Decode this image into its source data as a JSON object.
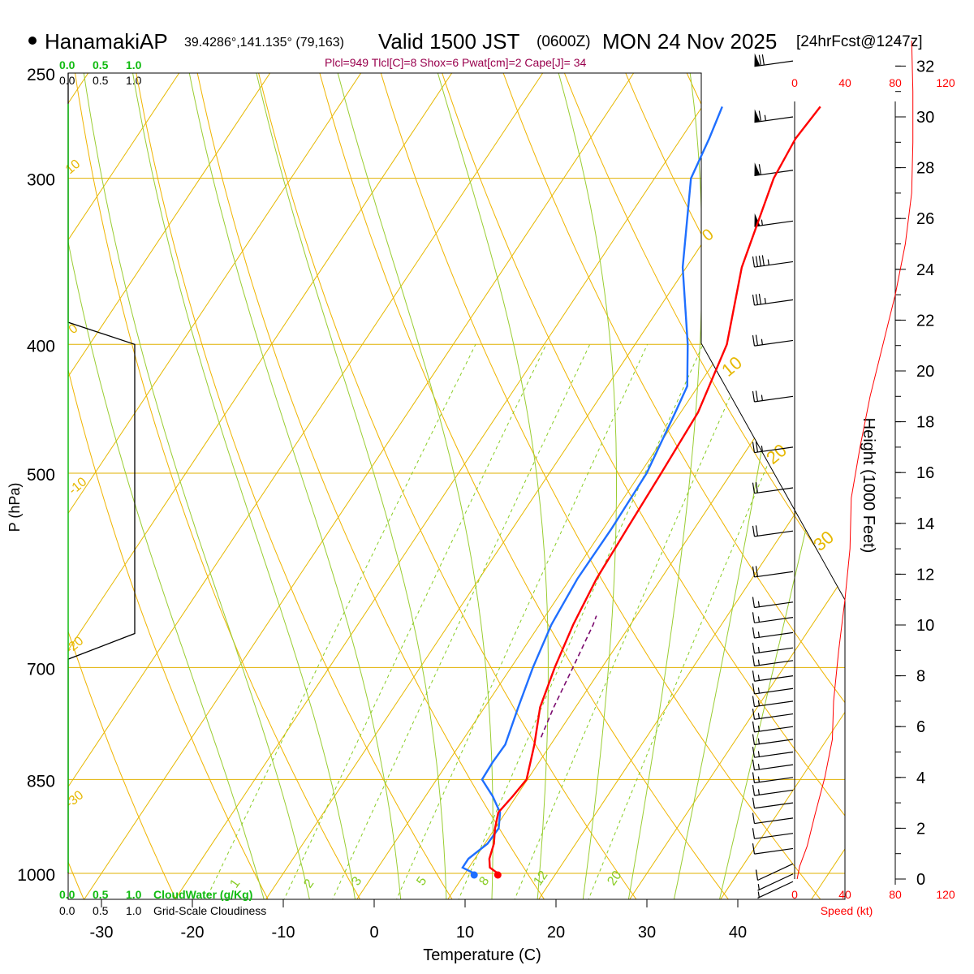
{
  "colors": {
    "iso": "#e6b800",
    "dryAdiabat": "#f0b400",
    "moistAdiabat": "#9acd32",
    "mixing": "#88cc22",
    "temp": "#ff0000",
    "dew": "#1f6fff",
    "parcel": "#7a0a6e",
    "cloud": "#11bb11",
    "stats": "#99004d",
    "wind": "#ff0000"
  },
  "header": {
    "station": "HanamakiAP",
    "coords": "39.4286°,141.135° (79,163)",
    "valid_label": "Valid 1500 JST",
    "zulu": "(0600Z)",
    "date": "MON 24 Nov 2025",
    "forecast": "[24hrFcst@1247z]",
    "stats": "Plcl=949 Tlcl[C]=8 Shox=6 Pwat[cm]=2 Cape[J]= 34"
  },
  "scales": {
    "cloud_water_ticks": [
      "0.0",
      "0.5",
      "1.0"
    ],
    "cloudiness_ticks": [
      "0.0",
      "0.5",
      "1.0"
    ],
    "cloud_water_label": "CloudWater (g/Kg)",
    "cloudiness_label": "Grid-Scale Cloudiness",
    "speed_ticks": [
      "0",
      "40",
      "80",
      "120"
    ],
    "speed_label": "Speed (kt)"
  },
  "chart_data": {
    "type": "skew-t",
    "title": "HanamakiAP Valid 1500 JST (0600Z) MON 24 Nov 2025",
    "xlabel": "Temperature (C)",
    "ylabel": "P (hPa)",
    "y2label": "Height (1000 Feet)",
    "x_ticks": [
      "-30",
      "-20",
      "-10",
      "0",
      "10",
      "20",
      "30",
      "40"
    ],
    "pressure_ticks": [
      {
        "p": 250,
        "label": "250"
      },
      {
        "p": 300,
        "label": "300"
      },
      {
        "p": 400,
        "label": "400"
      },
      {
        "p": 500,
        "label": "500"
      },
      {
        "p": 700,
        "label": "700"
      },
      {
        "p": 850,
        "label": "850"
      },
      {
        "p": 1000,
        "label": "1000"
      }
    ],
    "height_ticks": [
      {
        "h": 0,
        "label": "0"
      },
      {
        "h": 2,
        "label": "2"
      },
      {
        "h": 4,
        "label": "4"
      },
      {
        "h": 6,
        "label": "6"
      },
      {
        "h": 8,
        "label": "8"
      },
      {
        "h": 10,
        "label": "10"
      },
      {
        "h": 12,
        "label": "12"
      },
      {
        "h": 14,
        "label": "14"
      },
      {
        "h": 16,
        "label": "16"
      },
      {
        "h": 18,
        "label": "18"
      },
      {
        "h": 20,
        "label": "20"
      },
      {
        "h": 22,
        "label": "22"
      },
      {
        "h": 24,
        "label": "24"
      },
      {
        "h": 26,
        "label": "26"
      },
      {
        "h": 28,
        "label": "28"
      },
      {
        "h": 30,
        "label": "30"
      },
      {
        "h": 32,
        "label": "32"
      }
    ],
    "isotherm_labels": [
      {
        "t": 0,
        "label": "0"
      },
      {
        "t": 10,
        "label": "10"
      },
      {
        "t": 20,
        "label": "20"
      },
      {
        "t": 30,
        "label": "30"
      },
      {
        "t": 10,
        "label": "10",
        "left": true
      },
      {
        "t": 0,
        "label": "0",
        "left": true
      },
      {
        "t": -10,
        "label": "-10",
        "left": true
      },
      {
        "t": -20,
        "label": "-20",
        "left": true
      },
      {
        "t": -30,
        "label": "-30",
        "left": true
      }
    ],
    "mixing_ratio_labels": [
      "1",
      "2",
      "3",
      "5",
      "8",
      "12",
      "20"
    ],
    "mixing_ratios": [
      1,
      2,
      3,
      5,
      8,
      12,
      20
    ],
    "temperature": [
      {
        "p": 1000,
        "t": 13.6
      },
      {
        "p": 990,
        "t": 12.3
      },
      {
        "p": 975,
        "t": 11.6
      },
      {
        "p": 950,
        "t": 11.0
      },
      {
        "p": 925,
        "t": 10.0
      },
      {
        "p": 900,
        "t": 9.2
      },
      {
        "p": 875,
        "t": 9.6
      },
      {
        "p": 850,
        "t": 9.9
      },
      {
        "p": 800,
        "t": 8.2
      },
      {
        "p": 750,
        "t": 6.1
      },
      {
        "p": 700,
        "t": 4.8
      },
      {
        "p": 650,
        "t": 3.7
      },
      {
        "p": 600,
        "t": 2.9
      },
      {
        "p": 550,
        "t": 2.6
      },
      {
        "p": 500,
        "t": 2.3
      },
      {
        "p": 450,
        "t": 1.9
      },
      {
        "p": 400,
        "t": 0.1
      },
      {
        "p": 350,
        "t": -3.9
      },
      {
        "p": 300,
        "t": -6.9
      },
      {
        "p": 280,
        "t": -7.4
      },
      {
        "p": 265,
        "t": -7.0
      }
    ],
    "dewpoint": [
      {
        "p": 1000,
        "t": 11.0
      },
      {
        "p": 990,
        "t": 9.3
      },
      {
        "p": 975,
        "t": 9.3
      },
      {
        "p": 950,
        "t": 10.3
      },
      {
        "p": 925,
        "t": 10.4
      },
      {
        "p": 900,
        "t": 9.4
      },
      {
        "p": 875,
        "t": 7.4
      },
      {
        "p": 850,
        "t": 5.0
      },
      {
        "p": 825,
        "t": 4.9
      },
      {
        "p": 800,
        "t": 5.0
      },
      {
        "p": 750,
        "t": 3.7
      },
      {
        "p": 700,
        "t": 2.4
      },
      {
        "p": 650,
        "t": 1.3
      },
      {
        "p": 600,
        "t": 0.8
      },
      {
        "p": 550,
        "t": 0.9
      },
      {
        "p": 500,
        "t": 0.7
      },
      {
        "p": 450,
        "t": -0.6
      },
      {
        "p": 430,
        "t": -1.2
      },
      {
        "p": 400,
        "t": -4.2
      },
      {
        "p": 350,
        "t": -10.4
      },
      {
        "p": 300,
        "t": -16.0
      },
      {
        "p": 280,
        "t": -16.9
      },
      {
        "p": 265,
        "t": -17.8
      }
    ],
    "parcel": [
      {
        "p": 790,
        "t": 8.4
      },
      {
        "p": 750,
        "t": 7.6
      },
      {
        "p": 700,
        "t": 6.8
      },
      {
        "p": 650,
        "t": 5.9
      },
      {
        "p": 640,
        "t": 5.6
      }
    ],
    "surface_temp": 13.6,
    "surface_dew": 11.0,
    "cloud_profile": [
      {
        "p": 250,
        "v": 0
      },
      {
        "p": 385,
        "v": 0
      },
      {
        "p": 400,
        "v": 1.0
      },
      {
        "p": 660,
        "v": 1.0
      },
      {
        "p": 690,
        "v": 0
      },
      {
        "p": 1000,
        "v": 0
      }
    ],
    "wind_speed_profile": [
      {
        "h": 0,
        "s": 2
      },
      {
        "h": 0.5,
        "s": 4
      },
      {
        "h": 1.3,
        "s": 10
      },
      {
        "h": 2.5,
        "s": 16
      },
      {
        "h": 4,
        "s": 24
      },
      {
        "h": 5.5,
        "s": 30
      },
      {
        "h": 7,
        "s": 31
      },
      {
        "h": 9,
        "s": 35
      },
      {
        "h": 11,
        "s": 40
      },
      {
        "h": 13,
        "s": 44
      },
      {
        "h": 15,
        "s": 45
      },
      {
        "h": 17,
        "s": 52
      },
      {
        "h": 19,
        "s": 60
      },
      {
        "h": 21,
        "s": 70
      },
      {
        "h": 23,
        "s": 80
      },
      {
        "h": 25,
        "s": 88
      },
      {
        "h": 27,
        "s": 93
      },
      {
        "h": 29,
        "s": 94
      },
      {
        "h": 31,
        "s": 94
      },
      {
        "h": 33,
        "s": 93
      }
    ],
    "wind_barbs": [
      {
        "h": 32.2,
        "kt": 70
      },
      {
        "h": 30.0,
        "kt": 65
      },
      {
        "h": 27.9,
        "kt": 60
      },
      {
        "h": 25.9,
        "kt": 55
      },
      {
        "h": 24.3,
        "kt": 45
      },
      {
        "h": 22.8,
        "kt": 35
      },
      {
        "h": 21.2,
        "kt": 25
      },
      {
        "h": 19.0,
        "kt": 25
      },
      {
        "h": 17.0,
        "kt": 25
      },
      {
        "h": 15.4,
        "kt": 20
      },
      {
        "h": 13.7,
        "kt": 20
      },
      {
        "h": 12.1,
        "kt": 20
      },
      {
        "h": 10.9,
        "kt": 15
      },
      {
        "h": 10.3,
        "kt": 15
      },
      {
        "h": 9.7,
        "kt": 15
      },
      {
        "h": 9.1,
        "kt": 15
      },
      {
        "h": 8.6,
        "kt": 15
      },
      {
        "h": 8.0,
        "kt": 15
      },
      {
        "h": 7.5,
        "kt": 15
      },
      {
        "h": 7.0,
        "kt": 15
      },
      {
        "h": 6.5,
        "kt": 15
      },
      {
        "h": 6.0,
        "kt": 15
      },
      {
        "h": 5.5,
        "kt": 15
      },
      {
        "h": 5.0,
        "kt": 15
      },
      {
        "h": 4.5,
        "kt": 15
      },
      {
        "h": 4.0,
        "kt": 15
      },
      {
        "h": 3.5,
        "kt": 15
      },
      {
        "h": 3.0,
        "kt": 10
      },
      {
        "h": 2.4,
        "kt": 10
      },
      {
        "h": 1.8,
        "kt": 10
      },
      {
        "h": 1.2,
        "kt": 10
      },
      {
        "h": 0.6,
        "kt": 10
      },
      {
        "h": 0.2,
        "kt": 5
      },
      {
        "h": -0.1,
        "kt": 5
      }
    ]
  }
}
